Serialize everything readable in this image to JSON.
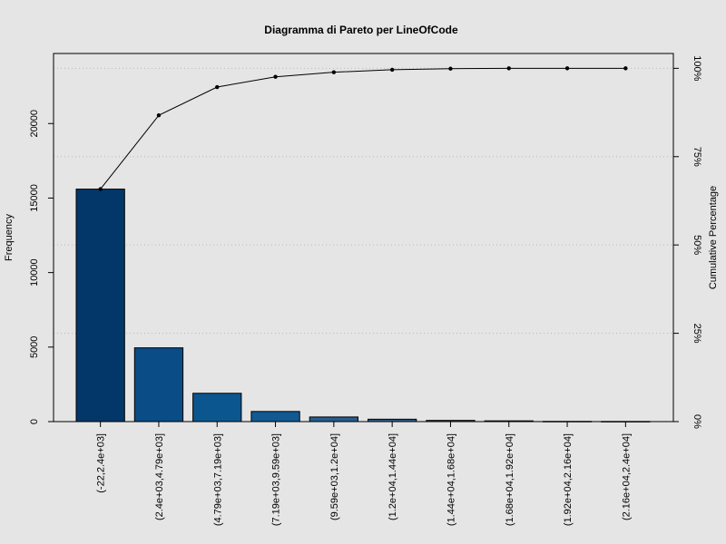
{
  "chart_data": {
    "type": "bar",
    "title": "Diagramma di Pareto per LineOfCode",
    "ylabel": "Frequency",
    "y2label": "Cumulative Percentage",
    "categories": [
      "(-22,2.4e+03]",
      "(2.4e+03,4.79e+03]",
      "(4.79e+03,7.19e+03]",
      "(7.19e+03,9.59e+03]",
      "(9.59e+03,1.2e+04]",
      "(1.2e+04,1.44e+04]",
      "(1.44e+04,1.68e+04]",
      "(1.68e+04,1.92e+04]",
      "(1.92e+04,2.16e+04]",
      "(2.16e+04,2.4e+04]"
    ],
    "series": [
      {
        "type": "bar",
        "values": [
          15600,
          4950,
          1900,
          680,
          310,
          160,
          80,
          50,
          15,
          10
        ]
      },
      {
        "type": "line",
        "axis": "right",
        "values": [
          65.8,
          86.7,
          94.7,
          97.6,
          98.9,
          99.6,
          99.9,
          100.0,
          100.0,
          100.0
        ]
      }
    ],
    "ylim": [
      0,
      24700
    ],
    "y_ticks": [
      0,
      5000,
      10000,
      15000,
      20000
    ],
    "y2lim": [
      0,
      104.2
    ],
    "y2_ticks": [
      0,
      25,
      50,
      75,
      100
    ],
    "y2_tick_labels": [
      "0%",
      "25%",
      "50%",
      "75%",
      "100%"
    ],
    "grid": "horizontal dotted at cumulative percentage ticks",
    "legend": "none",
    "colors": {
      "background": "#e5e5e5",
      "bars": [
        "#03376a",
        "#0a4c86",
        "#0c5690",
        "#125a93",
        "#275c8e",
        "#335f8a",
        "#3e6287",
        "#476585",
        "#4c6784",
        "#506883"
      ]
    }
  }
}
